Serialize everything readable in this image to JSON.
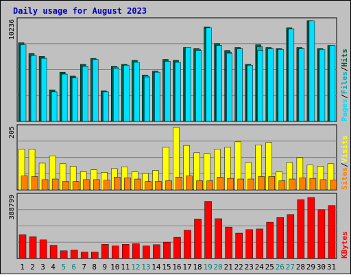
{
  "title": "Daily usage for August 2023",
  "colors": {
    "background": "#c0c0c0",
    "title": "#0000c0",
    "pages": "#00e0ff",
    "files": "#00b0c0",
    "hits": "#006040",
    "sites": "#ff8000",
    "visits": "#ffff00",
    "kbytes": "#ff0000",
    "weekend_label": "#008080",
    "weekday_label": "#000000"
  },
  "chart_data": [
    {
      "type": "bar",
      "title": "Daily usage for August 2023",
      "ylabel_parts": [
        "Pages",
        "Files",
        "Hits"
      ],
      "ymax_label": "10236",
      "ylim": [
        0,
        10236
      ],
      "categories": [
        "1",
        "2",
        "3",
        "4",
        "5",
        "6",
        "7",
        "8",
        "9",
        "10",
        "11",
        "12",
        "13",
        "14",
        "15",
        "16",
        "17",
        "18",
        "19",
        "20",
        "21",
        "22",
        "23",
        "24",
        "25",
        "26",
        "27",
        "28",
        "29",
        "30",
        "31"
      ],
      "weekend_days": [
        5,
        6,
        12,
        13,
        19,
        20,
        26,
        27
      ],
      "series": [
        {
          "name": "Hits",
          "values": [
            8000,
            6900,
            6600,
            3200,
            5000,
            4600,
            5800,
            6400,
            3100,
            5600,
            5800,
            6200,
            4700,
            5100,
            6300,
            6200,
            7500,
            7400,
            9600,
            7900,
            7200,
            7500,
            5800,
            7800,
            7500,
            7400,
            9500,
            7500,
            10236,
            7400,
            7700
          ]
        },
        {
          "name": "Files",
          "values": [
            7800,
            6600,
            6400,
            3000,
            4800,
            4400,
            5600,
            6200,
            3000,
            5500,
            5700,
            6000,
            4600,
            5000,
            6100,
            6000,
            7300,
            7300,
            9400,
            7700,
            7000,
            7300,
            5700,
            7600,
            7300,
            7300,
            9300,
            7300,
            10200,
            7200,
            7500
          ]
        },
        {
          "name": "Pages",
          "values": [
            7800,
            6700,
            6400,
            3000,
            4800,
            4400,
            5600,
            6300,
            3000,
            5400,
            5700,
            6000,
            4500,
            5000,
            6100,
            6000,
            7500,
            7200,
            9500,
            7700,
            6900,
            7400,
            5700,
            7200,
            7400,
            7300,
            9400,
            7400,
            10200,
            7300,
            7700
          ]
        }
      ]
    },
    {
      "type": "bar",
      "ylabel_parts": [
        "Sites",
        "Visits"
      ],
      "ymax_label": "205",
      "ylim": [
        0,
        205
      ],
      "categories": [
        "1",
        "2",
        "3",
        "4",
        "5",
        "6",
        "7",
        "8",
        "9",
        "10",
        "11",
        "12",
        "13",
        "14",
        "15",
        "16",
        "17",
        "18",
        "19",
        "20",
        "21",
        "22",
        "23",
        "24",
        "25",
        "26",
        "27",
        "28",
        "29",
        "30",
        "31"
      ],
      "series": [
        {
          "name": "Visits",
          "values": [
            134,
            134,
            88,
            112,
            86,
            78,
            60,
            66,
            58,
            70,
            76,
            60,
            54,
            64,
            140,
            205,
            146,
            122,
            120,
            134,
            140,
            158,
            90,
            148,
            156,
            60,
            90,
            106,
            82,
            78,
            86
          ]
        },
        {
          "name": "Sites",
          "values": [
            46,
            44,
            34,
            36,
            28,
            28,
            34,
            34,
            32,
            42,
            40,
            36,
            28,
            28,
            30,
            42,
            46,
            30,
            30,
            42,
            38,
            36,
            36,
            44,
            44,
            30,
            36,
            40,
            38,
            34,
            32
          ]
        }
      ]
    },
    {
      "type": "bar",
      "ylabel_parts": [
        "KBytes"
      ],
      "ymax_label": "388799",
      "ylim": [
        0,
        388799
      ],
      "categories": [
        "1",
        "2",
        "3",
        "4",
        "5",
        "6",
        "7",
        "8",
        "9",
        "10",
        "11",
        "12",
        "13",
        "14",
        "15",
        "16",
        "17",
        "18",
        "19",
        "20",
        "21",
        "22",
        "23",
        "24",
        "25",
        "26",
        "27",
        "28",
        "29",
        "30",
        "31"
      ],
      "series": [
        {
          "name": "KBytes",
          "values": [
            148000,
            136000,
            116000,
            82000,
            48000,
            52000,
            40000,
            40000,
            88000,
            78000,
            88000,
            92000,
            78000,
            86000,
            102000,
            132000,
            176000,
            246000,
            356000,
            248000,
            196000,
            158000,
            180000,
            184000,
            226000,
            255000,
            274000,
            367000,
            380000,
            304000,
            330000
          ]
        }
      ]
    }
  ]
}
